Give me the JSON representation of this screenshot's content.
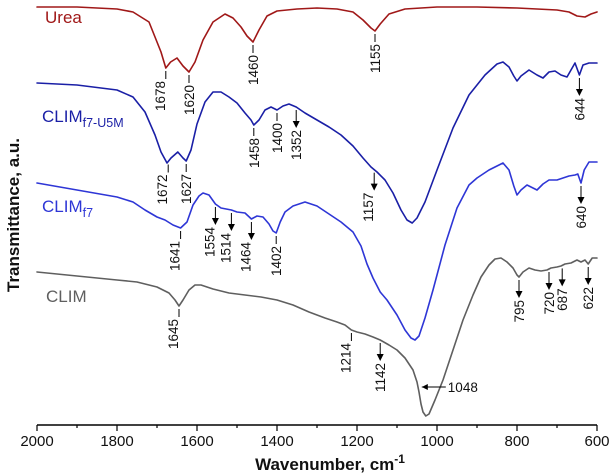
{
  "chart_data": {
    "type": "line",
    "title": "",
    "xlabel": "Wavenumber, cm",
    "xlabel_sup": "-1",
    "ylabel": "Transmittance, a.u.",
    "xlim": [
      2000,
      600
    ],
    "x_reversed": true,
    "x_ticks": [
      2000,
      1800,
      1600,
      1400,
      1200,
      1000,
      800,
      600
    ],
    "y_ticks_shown": false,
    "series": [
      {
        "name": "Urea",
        "label_main": "Urea",
        "label_sub": "",
        "color": "#a01818",
        "points": [
          [
            2000,
            7
          ],
          [
            1900,
            7
          ],
          [
            1800,
            9
          ],
          [
            1760,
            12
          ],
          [
            1720,
            22
          ],
          [
            1690,
            52
          ],
          [
            1678,
            68
          ],
          [
            1666,
            62
          ],
          [
            1650,
            58
          ],
          [
            1635,
            66
          ],
          [
            1620,
            72
          ],
          [
            1605,
            62
          ],
          [
            1585,
            40
          ],
          [
            1560,
            22
          ],
          [
            1530,
            14
          ],
          [
            1510,
            18
          ],
          [
            1490,
            27
          ],
          [
            1475,
            36
          ],
          [
            1460,
            42
          ],
          [
            1445,
            30
          ],
          [
            1425,
            16
          ],
          [
            1400,
            11
          ],
          [
            1350,
            9
          ],
          [
            1300,
            8
          ],
          [
            1250,
            9
          ],
          [
            1210,
            12
          ],
          [
            1185,
            20
          ],
          [
            1165,
            28
          ],
          [
            1155,
            31
          ],
          [
            1142,
            24
          ],
          [
            1120,
            14
          ],
          [
            1080,
            9
          ],
          [
            1000,
            7
          ],
          [
            900,
            7
          ],
          [
            800,
            8
          ],
          [
            750,
            9
          ],
          [
            700,
            10
          ],
          [
            670,
            12
          ],
          [
            650,
            16
          ],
          [
            630,
            17
          ],
          [
            615,
            14
          ],
          [
            600,
            12
          ]
        ],
        "peaks": [
          {
            "label": "1678",
            "x": 1678,
            "arrow": false,
            "side": "left"
          },
          {
            "label": "1620",
            "x": 1620,
            "arrow": false,
            "side": "right"
          },
          {
            "label": "1460",
            "x": 1460,
            "arrow": false,
            "side": "right"
          },
          {
            "label": "1155",
            "x": 1155,
            "arrow": false,
            "side": "right"
          }
        ]
      },
      {
        "name": "CLIMf7-U5M",
        "label_main": "CLIM",
        "label_sub": "f7-U5M",
        "color": "#1a1fa6",
        "points": [
          [
            2000,
            83
          ],
          [
            1900,
            85
          ],
          [
            1800,
            90
          ],
          [
            1760,
            97
          ],
          [
            1730,
            112
          ],
          [
            1705,
            135
          ],
          [
            1690,
            152
          ],
          [
            1675,
            163
          ],
          [
            1665,
            158
          ],
          [
            1648,
            152
          ],
          [
            1635,
            158
          ],
          [
            1627,
            161
          ],
          [
            1615,
            150
          ],
          [
            1600,
            124
          ],
          [
            1580,
            102
          ],
          [
            1560,
            92
          ],
          [
            1540,
            92
          ],
          [
            1520,
            97
          ],
          [
            1500,
            103
          ],
          [
            1480,
            113
          ],
          [
            1465,
            120
          ],
          [
            1458,
            125
          ],
          [
            1445,
            120
          ],
          [
            1430,
            110
          ],
          [
            1415,
            107
          ],
          [
            1400,
            110
          ],
          [
            1385,
            106
          ],
          [
            1370,
            104
          ],
          [
            1352,
            107
          ],
          [
            1330,
            113
          ],
          [
            1300,
            120
          ],
          [
            1270,
            127
          ],
          [
            1240,
            135
          ],
          [
            1210,
            146
          ],
          [
            1185,
            158
          ],
          [
            1165,
            167
          ],
          [
            1150,
            172
          ],
          [
            1130,
            180
          ],
          [
            1110,
            193
          ],
          [
            1090,
            210
          ],
          [
            1075,
            220
          ],
          [
            1062,
            223
          ],
          [
            1050,
            218
          ],
          [
            1030,
            202
          ],
          [
            1000,
            170
          ],
          [
            960,
            128
          ],
          [
            920,
            95
          ],
          [
            880,
            75
          ],
          [
            850,
            64
          ],
          [
            835,
            62
          ],
          [
            820,
            67
          ],
          [
            808,
            76
          ],
          [
            800,
            81
          ],
          [
            790,
            76
          ],
          [
            770,
            70
          ],
          [
            750,
            75
          ],
          [
            735,
            78
          ],
          [
            720,
            72
          ],
          [
            705,
            71
          ],
          [
            690,
            75
          ],
          [
            675,
            77
          ],
          [
            665,
            70
          ],
          [
            655,
            63
          ],
          [
            644,
            75
          ],
          [
            635,
            65
          ],
          [
            620,
            63
          ],
          [
            600,
            63
          ]
        ],
        "peaks": [
          {
            "label": "1672",
            "x": 1672,
            "arrow": false,
            "side": "left"
          },
          {
            "label": "1627",
            "x": 1627,
            "arrow": false,
            "side": "right"
          },
          {
            "label": "1458",
            "x": 1458,
            "arrow": false,
            "side": "right"
          },
          {
            "label": "1400",
            "x": 1400,
            "arrow": false,
            "side": "right"
          },
          {
            "label": "1352",
            "x": 1352,
            "arrow": true,
            "side": "right"
          },
          {
            "label": "1157",
            "x": 1157,
            "arrow": true,
            "side": "left"
          },
          {
            "label": "644",
            "x": 644,
            "arrow": true,
            "side": "right"
          }
        ]
      },
      {
        "name": "CLIMf7",
        "label_main": "CLIM",
        "label_sub": "f7",
        "color": "#2e36d6",
        "points": [
          [
            2000,
            183
          ],
          [
            1900,
            190
          ],
          [
            1800,
            197
          ],
          [
            1760,
            202
          ],
          [
            1730,
            210
          ],
          [
            1700,
            217
          ],
          [
            1680,
            220
          ],
          [
            1660,
            225
          ],
          [
            1641,
            228
          ],
          [
            1625,
            222
          ],
          [
            1610,
            205
          ],
          [
            1595,
            196
          ],
          [
            1585,
            193
          ],
          [
            1570,
            195
          ],
          [
            1554,
            204
          ],
          [
            1540,
            208
          ],
          [
            1514,
            210
          ],
          [
            1500,
            212
          ],
          [
            1480,
            213
          ],
          [
            1464,
            219
          ],
          [
            1450,
            216
          ],
          [
            1435,
            217
          ],
          [
            1420,
            224
          ],
          [
            1410,
            231
          ],
          [
            1402,
            233
          ],
          [
            1392,
            222
          ],
          [
            1380,
            212
          ],
          [
            1360,
            206
          ],
          [
            1330,
            202
          ],
          [
            1300,
            206
          ],
          [
            1270,
            214
          ],
          [
            1240,
            222
          ],
          [
            1210,
            232
          ],
          [
            1190,
            246
          ],
          [
            1175,
            264
          ],
          [
            1160,
            278
          ],
          [
            1142,
            292
          ],
          [
            1125,
            300
          ],
          [
            1100,
            315
          ],
          [
            1080,
            330
          ],
          [
            1065,
            338
          ],
          [
            1055,
            340
          ],
          [
            1045,
            336
          ],
          [
            1030,
            318
          ],
          [
            1010,
            290
          ],
          [
            980,
            245
          ],
          [
            950,
            208
          ],
          [
            920,
            185
          ],
          [
            900,
            178
          ],
          [
            870,
            170
          ],
          [
            850,
            166
          ],
          [
            835,
            163
          ],
          [
            820,
            170
          ],
          [
            808,
            186
          ],
          [
            800,
            195
          ],
          [
            790,
            190
          ],
          [
            775,
            185
          ],
          [
            760,
            188
          ],
          [
            750,
            190
          ],
          [
            735,
            184
          ],
          [
            720,
            180
          ],
          [
            700,
            180
          ],
          [
            685,
            178
          ],
          [
            670,
            176
          ],
          [
            655,
            175
          ],
          [
            648,
            174
          ],
          [
            640,
            183
          ],
          [
            632,
            170
          ],
          [
            620,
            162
          ],
          [
            600,
            162
          ]
        ],
        "peaks": [
          {
            "label": "1641",
            "x": 1641,
            "arrow": false,
            "side": "left"
          },
          {
            "label": "1554",
            "x": 1554,
            "arrow": true,
            "side": "left"
          },
          {
            "label": "1514",
            "x": 1514,
            "arrow": true,
            "side": "left"
          },
          {
            "label": "1464",
            "x": 1464,
            "arrow": true,
            "side": "left"
          },
          {
            "label": "1402",
            "x": 1402,
            "arrow": false,
            "side": "right"
          },
          {
            "label": "640",
            "x": 640,
            "arrow": true,
            "side": "right"
          }
        ]
      },
      {
        "name": "CLIM",
        "label_main": "CLIM",
        "label_sub": "",
        "color": "#5f5f5f",
        "points": [
          [
            2000,
            272
          ],
          [
            1900,
            276
          ],
          [
            1800,
            280
          ],
          [
            1750,
            282
          ],
          [
            1700,
            287
          ],
          [
            1670,
            293
          ],
          [
            1655,
            300
          ],
          [
            1645,
            306
          ],
          [
            1635,
            300
          ],
          [
            1620,
            290
          ],
          [
            1605,
            285
          ],
          [
            1590,
            285
          ],
          [
            1560,
            289
          ],
          [
            1520,
            293
          ],
          [
            1480,
            295
          ],
          [
            1440,
            297
          ],
          [
            1400,
            300
          ],
          [
            1360,
            305
          ],
          [
            1320,
            312
          ],
          [
            1280,
            318
          ],
          [
            1250,
            322
          ],
          [
            1230,
            325
          ],
          [
            1214,
            330
          ],
          [
            1200,
            332
          ],
          [
            1180,
            334
          ],
          [
            1160,
            337
          ],
          [
            1142,
            340
          ],
          [
            1120,
            345
          ],
          [
            1100,
            350
          ],
          [
            1080,
            358
          ],
          [
            1060,
            370
          ],
          [
            1050,
            382
          ],
          [
            1045,
            392
          ],
          [
            1040,
            404
          ],
          [
            1035,
            412
          ],
          [
            1028,
            416
          ],
          [
            1020,
            414
          ],
          [
            1005,
            400
          ],
          [
            985,
            380
          ],
          [
            960,
            350
          ],
          [
            935,
            320
          ],
          [
            910,
            295
          ],
          [
            890,
            277
          ],
          [
            870,
            265
          ],
          [
            855,
            259
          ],
          [
            840,
            258
          ],
          [
            825,
            262
          ],
          [
            810,
            268
          ],
          [
            800,
            275
          ],
          [
            795,
            277
          ],
          [
            785,
            272
          ],
          [
            770,
            268
          ],
          [
            755,
            270
          ],
          [
            740,
            271
          ],
          [
            725,
            270
          ],
          [
            715,
            268
          ],
          [
            700,
            267
          ],
          [
            690,
            266
          ],
          [
            680,
            264
          ],
          [
            665,
            263
          ],
          [
            650,
            260
          ],
          [
            640,
            262
          ],
          [
            630,
            260
          ],
          [
            622,
            264
          ],
          [
            612,
            258
          ],
          [
            600,
            258
          ]
        ],
        "peaks": [
          {
            "label": "1645",
            "x": 1645,
            "arrow": false,
            "side": "left"
          },
          {
            "label": "1214",
            "x": 1214,
            "arrow": false,
            "side": "left"
          },
          {
            "label": "1142",
            "x": 1142,
            "arrow": true,
            "side": "right"
          },
          {
            "label": "1048",
            "x": 1048,
            "arrow": true,
            "side": "horizontal"
          },
          {
            "label": "795",
            "x": 795,
            "arrow": true,
            "side": "right"
          },
          {
            "label": "720",
            "x": 720,
            "arrow": true,
            "side": "right"
          },
          {
            "label": "687",
            "x": 687,
            "arrow": true,
            "side": "right"
          },
          {
            "label": "622",
            "x": 622,
            "arrow": true,
            "side": "right"
          }
        ]
      }
    ]
  }
}
